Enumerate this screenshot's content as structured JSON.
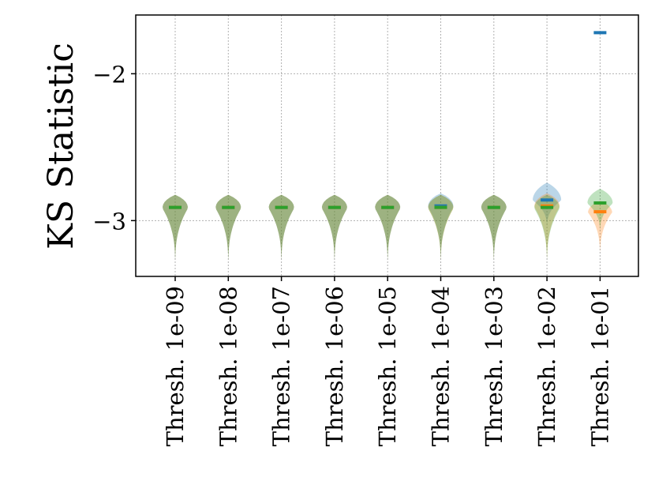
{
  "chart_data": {
    "type": "violin",
    "title": "",
    "xlabel": "",
    "ylabel": "KS Statistic",
    "categories": [
      "Thresh. 1e-09",
      "Thresh. 1e-08",
      "Thresh. 1e-07",
      "Thresh. 1e-06",
      "Thresh. 1e-05",
      "Thresh. 1e-04",
      "Thresh. 1e-03",
      "Thresh. 1e-02",
      "Thresh. 1e-01"
    ],
    "ylim": [
      -3.38,
      -1.6
    ],
    "yticks": [
      -3,
      -2
    ],
    "ytick_labels": [
      "−3",
      "−2"
    ],
    "grid": true,
    "series": [
      {
        "color": "#1f77b4",
        "medians": [
          -2.91,
          -2.91,
          -2.91,
          -2.91,
          -2.91,
          -2.9,
          -2.91,
          -2.86,
          -1.72
        ]
      },
      {
        "color": "#ff7f0e",
        "medians": [
          -2.91,
          -2.91,
          -2.91,
          -2.91,
          -2.91,
          -2.91,
          -2.91,
          -2.9,
          -2.94
        ]
      },
      {
        "color": "#2ca02c",
        "medians": [
          -2.91,
          -2.91,
          -2.91,
          -2.91,
          -2.91,
          -2.91,
          -2.91,
          -2.91,
          -2.88
        ]
      }
    ]
  }
}
